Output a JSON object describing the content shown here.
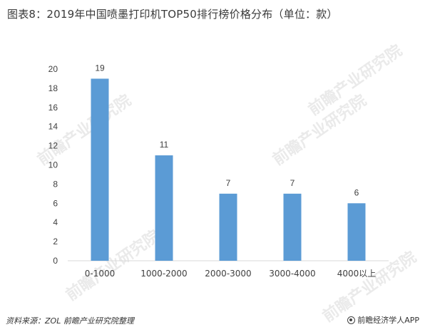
{
  "title": "图表8：2019年中国喷墨打印机TOP50排行榜价格分布（单位：款）",
  "source": "资料来源：ZOL 前瞻产业研究院整理",
  "brand": "前瞻经济学人APP",
  "watermark": "前瞻产业研究院",
  "colors": {
    "bar": "#5b9bd5",
    "axis": "#d9d9d9",
    "text": "#404040"
  },
  "chart_data": {
    "type": "bar",
    "title": "图表8：2019年中国喷墨打印机TOP50排行榜价格分布（单位：款）",
    "categories": [
      "0-1000",
      "1000-2000",
      "2000-3000",
      "3000-4000",
      "4000以上"
    ],
    "values": [
      19,
      11,
      7,
      7,
      6
    ],
    "ylim": [
      0,
      20
    ],
    "yticks": [
      0,
      2,
      4,
      6,
      8,
      10,
      12,
      14,
      16,
      18,
      20
    ],
    "grid": false,
    "data_labels": true,
    "xlabel": "",
    "ylabel": ""
  }
}
